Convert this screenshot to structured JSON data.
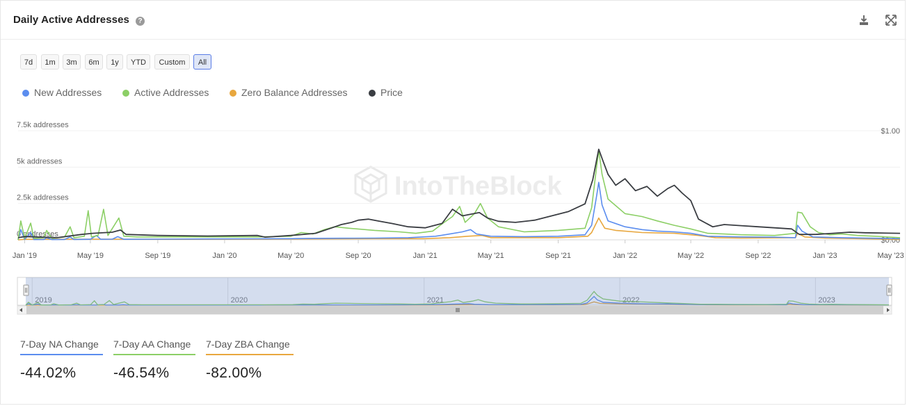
{
  "header": {
    "title": "Daily Active Addresses",
    "help_icon": "question-circle-icon",
    "download_icon": "download-icon",
    "fullscreen_icon": "expand-icon"
  },
  "ranges": [
    "7d",
    "1m",
    "3m",
    "6m",
    "1y",
    "YTD",
    "Custom",
    "All"
  ],
  "active_range": "All",
  "legend": [
    {
      "label": "New Addresses",
      "color": "#5b8def"
    },
    {
      "label": "Active Addresses",
      "color": "#8ccf66"
    },
    {
      "label": "Zero Balance Addresses",
      "color": "#e8a73e"
    },
    {
      "label": "Price",
      "color": "#3a3d42"
    }
  ],
  "watermark": "IntoTheBlock",
  "stats": [
    {
      "label": "7-Day NA Change",
      "value": "-44.02%",
      "color": "#5b8def"
    },
    {
      "label": "7-Day AA Change",
      "value": "-46.54%",
      "color": "#8ccf66"
    },
    {
      "label": "7-Day ZBA Change",
      "value": "-82.00%",
      "color": "#e8a73e"
    }
  ],
  "chart_data": {
    "type": "line",
    "x_range": [
      "2018-12-20",
      "2023-05-18"
    ],
    "x_tick_labels": [
      "Jan '19",
      "May '19",
      "Sep '19",
      "Jan '20",
      "May '20",
      "Sep '20",
      "Jan '21",
      "May '21",
      "Sep '21",
      "Jan '22",
      "May '22",
      "Sep '22",
      "Jan '23",
      "May '23"
    ],
    "y_tick_labels": [
      "0 addresses",
      "2.5k addresses",
      "5k addresses",
      "7.5k addresses"
    ],
    "y_ticks": [
      0,
      2500,
      5000,
      7500
    ],
    "ylim": [
      0,
      7500
    ],
    "y2_tick_labels": [
      "$0.00",
      "$1.00"
    ],
    "y2_ticks": [
      0,
      1
    ],
    "y2lim": [
      0,
      1
    ],
    "grid": true,
    "navigator_year_labels": [
      "2019",
      "2020",
      "2021",
      "2022",
      "2023"
    ],
    "series": [
      {
        "name": "New Addresses",
        "axis": "left",
        "color": "#5b8def",
        "points": [
          [
            "2018-12-20",
            0
          ],
          [
            "2018-12-25",
            700
          ],
          [
            "2019-01-01",
            30
          ],
          [
            "2019-01-12",
            500
          ],
          [
            "2019-01-18",
            20
          ],
          [
            "2019-02-05",
            30
          ],
          [
            "2019-02-10",
            150
          ],
          [
            "2019-02-20",
            20
          ],
          [
            "2019-03-15",
            30
          ],
          [
            "2019-03-25",
            200
          ],
          [
            "2019-04-01",
            30
          ],
          [
            "2019-05-01",
            40
          ],
          [
            "2019-05-12",
            300
          ],
          [
            "2019-05-20",
            40
          ],
          [
            "2019-06-10",
            50
          ],
          [
            "2019-06-20",
            220
          ],
          [
            "2019-07-01",
            40
          ],
          [
            "2019-09-01",
            50
          ],
          [
            "2019-12-01",
            60
          ],
          [
            "2020-03-01",
            70
          ],
          [
            "2020-05-01",
            80
          ],
          [
            "2020-06-01",
            100
          ],
          [
            "2020-08-01",
            110
          ],
          [
            "2020-10-01",
            120
          ],
          [
            "2020-12-01",
            150
          ],
          [
            "2021-01-20",
            250
          ],
          [
            "2021-02-15",
            400
          ],
          [
            "2021-03-10",
            550
          ],
          [
            "2021-03-25",
            700
          ],
          [
            "2021-04-05",
            400
          ],
          [
            "2021-05-01",
            250
          ],
          [
            "2021-07-01",
            220
          ],
          [
            "2021-09-01",
            250
          ],
          [
            "2021-10-20",
            350
          ],
          [
            "2021-11-01",
            1000
          ],
          [
            "2021-11-10",
            3000
          ],
          [
            "2021-11-14",
            3950
          ],
          [
            "2021-11-20",
            2400
          ],
          [
            "2021-12-01",
            1300
          ],
          [
            "2022-01-01",
            900
          ],
          [
            "2022-02-01",
            700
          ],
          [
            "2022-03-01",
            600
          ],
          [
            "2022-04-01",
            550
          ],
          [
            "2022-05-01",
            450
          ],
          [
            "2022-06-01",
            250
          ],
          [
            "2022-08-01",
            200
          ],
          [
            "2022-10-01",
            180
          ],
          [
            "2022-11-08",
            150
          ],
          [
            "2022-11-12",
            1000
          ],
          [
            "2022-11-20",
            600
          ],
          [
            "2022-12-10",
            200
          ],
          [
            "2023-02-01",
            150
          ],
          [
            "2023-05-18",
            80
          ]
        ]
      },
      {
        "name": "Active Addresses",
        "axis": "left",
        "color": "#8ccf66",
        "points": [
          [
            "2018-12-20",
            0
          ],
          [
            "2018-12-25",
            1300
          ],
          [
            "2019-01-01",
            100
          ],
          [
            "2019-01-12",
            1150
          ],
          [
            "2019-01-18",
            100
          ],
          [
            "2019-02-05",
            150
          ],
          [
            "2019-02-10",
            650
          ],
          [
            "2019-02-20",
            100
          ],
          [
            "2019-03-15",
            200
          ],
          [
            "2019-03-25",
            900
          ],
          [
            "2019-04-01",
            150
          ],
          [
            "2019-04-20",
            250
          ],
          [
            "2019-04-27",
            2000
          ],
          [
            "2019-05-03",
            200
          ],
          [
            "2019-05-15",
            300
          ],
          [
            "2019-05-25",
            2100
          ],
          [
            "2019-06-02",
            300
          ],
          [
            "2019-06-22",
            1500
          ],
          [
            "2019-07-01",
            250
          ],
          [
            "2019-07-25",
            200
          ],
          [
            "2019-09-01",
            200
          ],
          [
            "2019-12-01",
            200
          ],
          [
            "2020-03-01",
            200
          ],
          [
            "2020-05-01",
            250
          ],
          [
            "2020-05-20",
            500
          ],
          [
            "2020-06-10",
            400
          ],
          [
            "2020-07-01",
            700
          ],
          [
            "2020-07-20",
            900
          ],
          [
            "2020-08-15",
            800
          ],
          [
            "2020-10-01",
            650
          ],
          [
            "2020-11-15",
            550
          ],
          [
            "2020-12-15",
            450
          ],
          [
            "2021-01-15",
            600
          ],
          [
            "2021-02-01",
            1100
          ],
          [
            "2021-02-20",
            1600
          ],
          [
            "2021-03-05",
            2300
          ],
          [
            "2021-03-15",
            1200
          ],
          [
            "2021-04-01",
            1800
          ],
          [
            "2021-04-12",
            2500
          ],
          [
            "2021-04-25",
            1500
          ],
          [
            "2021-05-15",
            900
          ],
          [
            "2021-07-01",
            550
          ],
          [
            "2021-09-01",
            650
          ],
          [
            "2021-10-20",
            800
          ],
          [
            "2021-11-01",
            2200
          ],
          [
            "2021-11-10",
            5000
          ],
          [
            "2021-11-14",
            6150
          ],
          [
            "2021-11-20",
            4500
          ],
          [
            "2021-12-01",
            2800
          ],
          [
            "2022-01-01",
            1800
          ],
          [
            "2022-02-01",
            1600
          ],
          [
            "2022-03-01",
            1300
          ],
          [
            "2022-04-01",
            1000
          ],
          [
            "2022-05-01",
            750
          ],
          [
            "2022-06-01",
            450
          ],
          [
            "2022-07-01",
            400
          ],
          [
            "2022-08-01",
            350
          ],
          [
            "2022-10-01",
            300
          ],
          [
            "2022-11-08",
            450
          ],
          [
            "2022-11-12",
            1900
          ],
          [
            "2022-11-20",
            1850
          ],
          [
            "2022-12-05",
            900
          ],
          [
            "2022-12-20",
            500
          ],
          [
            "2023-01-10",
            350
          ],
          [
            "2023-02-01",
            400
          ],
          [
            "2023-03-01",
            300
          ],
          [
            "2023-04-01",
            250
          ],
          [
            "2023-05-18",
            150
          ]
        ]
      },
      {
        "name": "Zero Balance Addresses",
        "axis": "left",
        "color": "#e8a73e",
        "points": [
          [
            "2018-12-20",
            0
          ],
          [
            "2019-01-01",
            40
          ],
          [
            "2019-05-01",
            50
          ],
          [
            "2019-09-01",
            40
          ],
          [
            "2020-03-01",
            50
          ],
          [
            "2020-06-01",
            60
          ],
          [
            "2020-10-01",
            80
          ],
          [
            "2021-01-01",
            80
          ],
          [
            "2021-02-15",
            150
          ],
          [
            "2021-03-20",
            250
          ],
          [
            "2021-04-15",
            300
          ],
          [
            "2021-05-01",
            150
          ],
          [
            "2021-09-01",
            150
          ],
          [
            "2021-10-25",
            250
          ],
          [
            "2021-11-01",
            500
          ],
          [
            "2021-11-14",
            1500
          ],
          [
            "2021-11-25",
            800
          ],
          [
            "2021-12-15",
            650
          ],
          [
            "2022-02-01",
            500
          ],
          [
            "2022-04-01",
            450
          ],
          [
            "2022-05-15",
            300
          ],
          [
            "2022-06-15",
            150
          ],
          [
            "2022-08-01",
            120
          ],
          [
            "2022-11-08",
            150
          ],
          [
            "2022-11-12",
            450
          ],
          [
            "2022-11-25",
            200
          ],
          [
            "2023-01-01",
            120
          ],
          [
            "2023-05-18",
            30
          ]
        ]
      },
      {
        "name": "Price",
        "axis": "right",
        "color": "#3a3d42",
        "points": [
          [
            "2018-12-20",
            0.02
          ],
          [
            "2019-01-01",
            0.03
          ],
          [
            "2019-03-01",
            0.02
          ],
          [
            "2019-04-15",
            0.05
          ],
          [
            "2019-05-05",
            0.06
          ],
          [
            "2019-06-10",
            0.07
          ],
          [
            "2019-06-25",
            0.09
          ],
          [
            "2019-07-05",
            0.05
          ],
          [
            "2019-09-01",
            0.04
          ],
          [
            "2019-12-01",
            0.035
          ],
          [
            "2020-03-01",
            0.04
          ],
          [
            "2020-03-15",
            0.025
          ],
          [
            "2020-05-01",
            0.04
          ],
          [
            "2020-06-15",
            0.06
          ],
          [
            "2020-07-15",
            0.11
          ],
          [
            "2020-08-01",
            0.14
          ],
          [
            "2020-08-20",
            0.16
          ],
          [
            "2020-09-01",
            0.18
          ],
          [
            "2020-09-20",
            0.19
          ],
          [
            "2020-10-10",
            0.17
          ],
          [
            "2020-11-01",
            0.15
          ],
          [
            "2020-12-01",
            0.12
          ],
          [
            "2021-01-01",
            0.11
          ],
          [
            "2021-02-01",
            0.15
          ],
          [
            "2021-02-20",
            0.28
          ],
          [
            "2021-03-10",
            0.22
          ],
          [
            "2021-04-10",
            0.25
          ],
          [
            "2021-04-25",
            0.2
          ],
          [
            "2021-05-15",
            0.17
          ],
          [
            "2021-06-15",
            0.16
          ],
          [
            "2021-07-20",
            0.18
          ],
          [
            "2021-08-20",
            0.22
          ],
          [
            "2021-09-20",
            0.26
          ],
          [
            "2021-10-20",
            0.33
          ],
          [
            "2021-11-03",
            0.55
          ],
          [
            "2021-11-14",
            0.83
          ],
          [
            "2021-11-22",
            0.72
          ],
          [
            "2021-12-01",
            0.6
          ],
          [
            "2021-12-15",
            0.5
          ],
          [
            "2022-01-01",
            0.56
          ],
          [
            "2022-01-20",
            0.45
          ],
          [
            "2022-02-10",
            0.49
          ],
          [
            "2022-03-01",
            0.4
          ],
          [
            "2022-03-20",
            0.47
          ],
          [
            "2022-04-01",
            0.5
          ],
          [
            "2022-04-15",
            0.43
          ],
          [
            "2022-05-01",
            0.36
          ],
          [
            "2022-05-15",
            0.19
          ],
          [
            "2022-06-10",
            0.12
          ],
          [
            "2022-07-01",
            0.14
          ],
          [
            "2022-08-01",
            0.13
          ],
          [
            "2022-09-01",
            0.12
          ],
          [
            "2022-10-01",
            0.11
          ],
          [
            "2022-11-01",
            0.1
          ],
          [
            "2022-11-15",
            0.05
          ],
          [
            "2022-12-15",
            0.05
          ],
          [
            "2023-01-15",
            0.06
          ],
          [
            "2023-02-15",
            0.07
          ],
          [
            "2023-03-15",
            0.065
          ],
          [
            "2023-05-18",
            0.06
          ]
        ]
      }
    ]
  }
}
